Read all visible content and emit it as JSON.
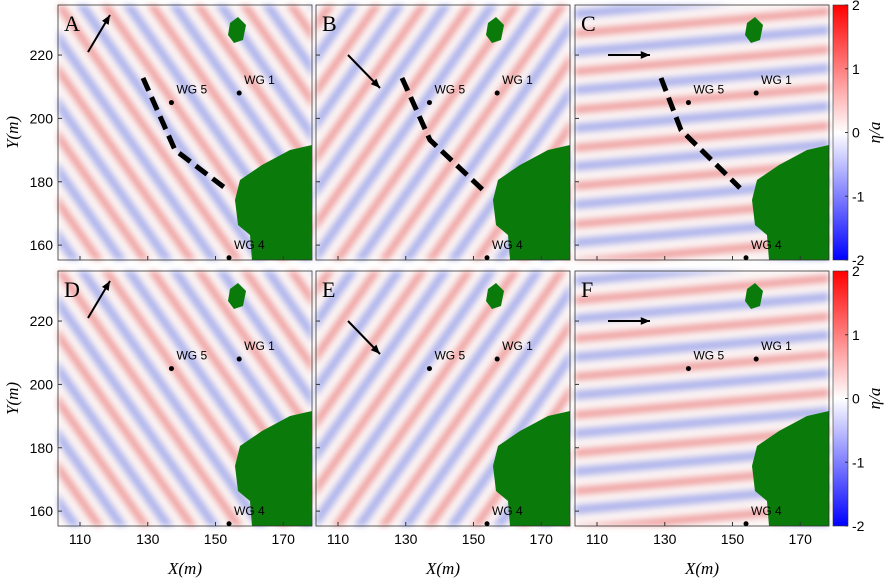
{
  "panels": [
    {
      "label": "A"
    },
    {
      "label": "B"
    },
    {
      "label": "C"
    },
    {
      "label": "D"
    },
    {
      "label": "E"
    },
    {
      "label": "F"
    }
  ],
  "gauges": [
    {
      "name": "WG 5",
      "x": 137,
      "y": 205
    },
    {
      "name": "WG 1",
      "x": 157,
      "y": 208
    },
    {
      "name": "WG 4",
      "x": 154,
      "y": 156
    }
  ],
  "xlim": [
    103.5,
    178.5
  ],
  "ylim": [
    155.3,
    235.8
  ],
  "xticks": [
    110,
    130,
    150,
    170
  ],
  "yticks": [
    160,
    180,
    200,
    220
  ],
  "x_label": "X(m)",
  "y_label": "Y(m)",
  "colorbar": {
    "label": "η/a",
    "lim": [
      -2,
      2
    ],
    "ticks": [
      -2,
      -1,
      0,
      1,
      2
    ]
  }
}
